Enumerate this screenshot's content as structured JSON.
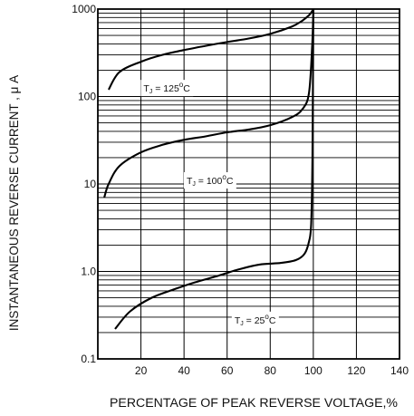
{
  "chart_data": {
    "type": "line",
    "xlabel": "PERCENTAGE OF PEAK REVERSE VOLTAGE,%",
    "ylabel": "INSTANTANEOUS REVERSE CURRENT , μ A",
    "xlim": [
      0,
      140
    ],
    "ylim": [
      0.1,
      1000
    ],
    "yscale": "log",
    "grid": true,
    "x_ticks": [
      "20",
      "40",
      "60",
      "80",
      "100",
      "120",
      "140"
    ],
    "y_ticks": [
      "0.1",
      "1.0",
      "10",
      "100",
      "1000"
    ],
    "series": [
      {
        "name": "TJ = 125°C",
        "label": {
          "main": "T",
          "sub": "J",
          "rest": " = 125",
          "sup": "o",
          "unit": "C"
        },
        "x": [
          5,
          10,
          20,
          30,
          40,
          50,
          60,
          70,
          80,
          90,
          95,
          98,
          99.5,
          100
        ],
        "y": [
          120,
          190,
          250,
          300,
          340,
          380,
          420,
          460,
          520,
          630,
          740,
          850,
          950,
          1000
        ]
      },
      {
        "name": "TJ = 100°C",
        "label": {
          "main": "T",
          "sub": "J",
          "rest": " = 100",
          "sup": "o",
          "unit": "C"
        },
        "x": [
          3,
          5,
          10,
          20,
          30,
          40,
          50,
          60,
          70,
          80,
          90,
          95,
          98,
          99.5,
          100
        ],
        "y": [
          7,
          10,
          16,
          23,
          28,
          32,
          35,
          39,
          42,
          47,
          58,
          72,
          110,
          400,
          1000
        ]
      },
      {
        "name": "TJ = 25°C",
        "label": {
          "main": "T",
          "sub": "J",
          "rest": " = 25",
          "sup": "o",
          "unit": "C"
        },
        "x": [
          8,
          15,
          25,
          35,
          45,
          55,
          65,
          75,
          85,
          92,
          96,
          98,
          99,
          99.6,
          100
        ],
        "y": [
          0.22,
          0.35,
          0.5,
          0.62,
          0.75,
          0.88,
          1.05,
          1.2,
          1.25,
          1.35,
          1.6,
          2.2,
          3.5,
          20,
          1000
        ]
      }
    ]
  }
}
